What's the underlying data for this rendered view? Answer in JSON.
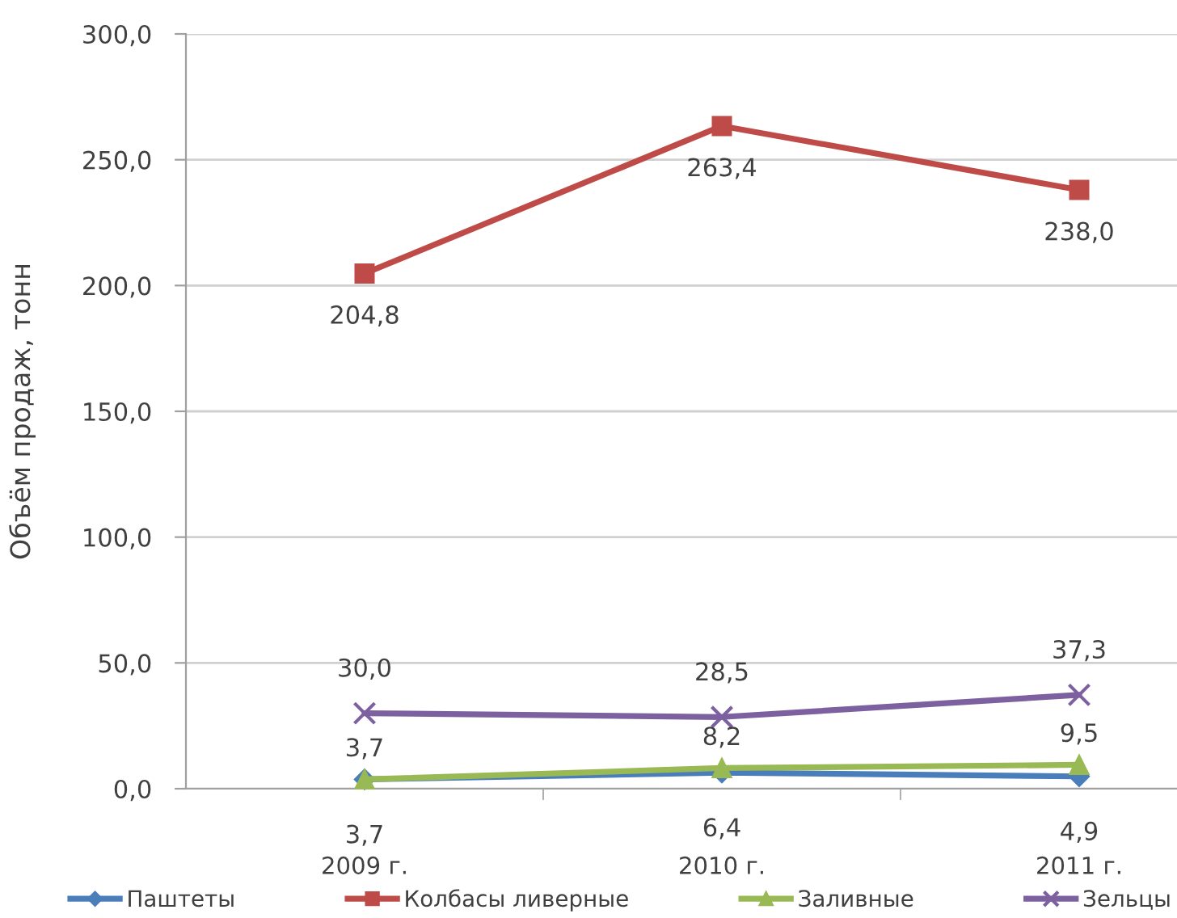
{
  "chart_data": {
    "type": "line",
    "ylabel": "Объём продаж, тонн",
    "categories": [
      "2009 г.",
      "2010 г.",
      "2011 г."
    ],
    "ylim": [
      0,
      300
    ],
    "yticks": [
      {
        "value": 0,
        "label": "0,0"
      },
      {
        "value": 50,
        "label": "50,0"
      },
      {
        "value": 100,
        "label": "100,0"
      },
      {
        "value": 150,
        "label": "150,0"
      },
      {
        "value": 200,
        "label": "200,0"
      },
      {
        "value": 250,
        "label": "250,0"
      },
      {
        "value": 300,
        "label": "300,0"
      }
    ],
    "grid": "y",
    "legend": "bottom",
    "line_style": "solid",
    "series": [
      {
        "name": "Паштеты",
        "color": "#4a7ebb",
        "marker": "diamond",
        "values": [
          3.7,
          6.4,
          4.9
        ],
        "value_labels": [
          "3,7",
          "6,4",
          "4,9"
        ]
      },
      {
        "name": "Колбасы ливерные",
        "color": "#be4b48",
        "marker": "square",
        "values": [
          204.8,
          263.4,
          238.0
        ],
        "value_labels": [
          "204,8",
          "263,4",
          "238,0"
        ]
      },
      {
        "name": "Заливные",
        "color": "#98b954",
        "marker": "triangle",
        "values": [
          3.7,
          8.2,
          9.5
        ],
        "value_labels": [
          "3,7",
          "8,2",
          "9,5"
        ]
      },
      {
        "name": "Зельцы",
        "color": "#7d60a0",
        "marker": "cross",
        "values": [
          30.0,
          28.5,
          37.3
        ],
        "value_labels": [
          "30,0",
          "28,5",
          "37,3"
        ]
      }
    ]
  }
}
